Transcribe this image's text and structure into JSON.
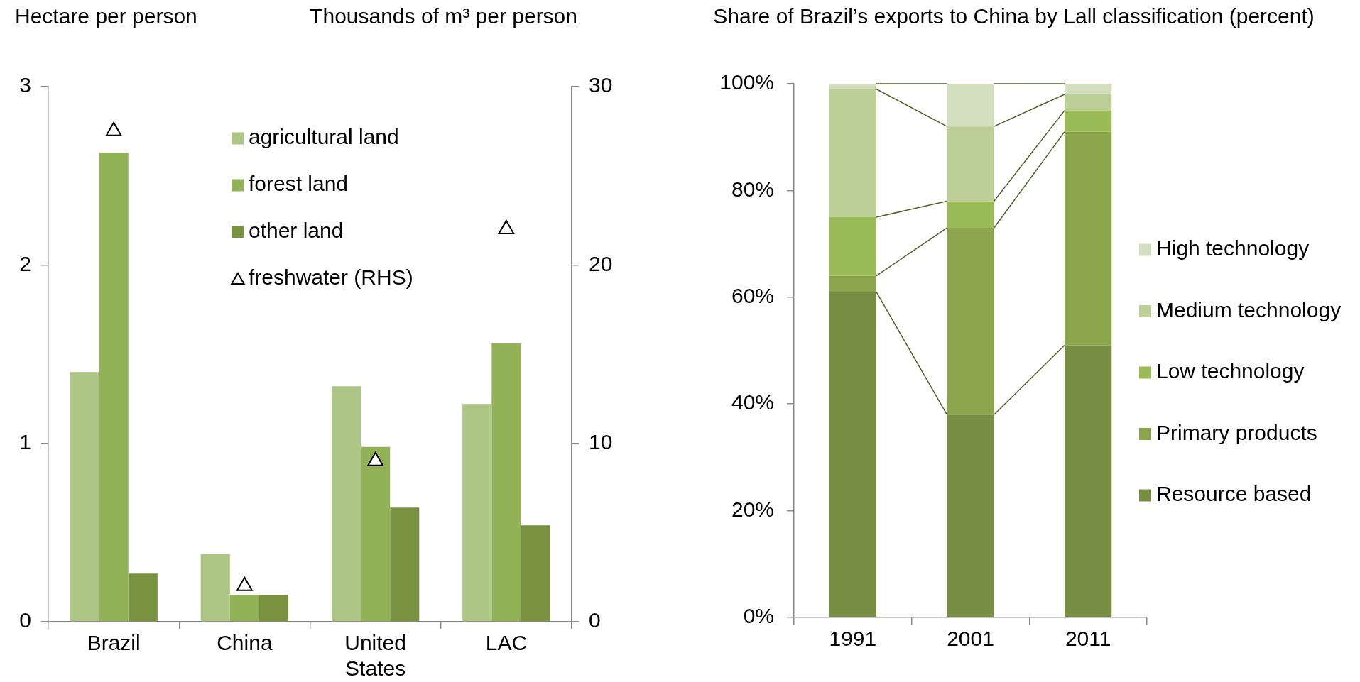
{
  "chart_data": [
    {
      "type": "bar",
      "ylabel": "Hectare per person",
      "y2label": "Thousands of m³ per person",
      "categories": [
        "Brazil",
        "China",
        "United States",
        "LAC"
      ],
      "series": [
        {
          "name": "agricultural land",
          "color": "#adc585",
          "values": [
            1.4,
            0.38,
            1.32,
            1.22
          ]
        },
        {
          "name": "forest land",
          "color": "#93b156",
          "values": [
            2.63,
            0.15,
            0.98,
            1.56
          ]
        },
        {
          "name": "other land",
          "color": "#789242",
          "values": [
            0.27,
            0.15,
            0.64,
            0.54
          ]
        },
        {
          "name": "freshwater (RHS)",
          "type": "scatter",
          "axis": "y2",
          "marker": "triangle",
          "color": "#000000",
          "x": [
            "Brazil",
            "China",
            "United States",
            "LAC"
          ],
          "values": [
            27.5,
            2.0,
            9.0,
            22.0
          ]
        }
      ],
      "ylim": [
        0,
        3
      ],
      "yticks": [
        0,
        1,
        2,
        3
      ],
      "y2lim": [
        0,
        30
      ],
      "y2ticks": [
        0,
        10,
        20,
        30
      ],
      "grid": false,
      "legend": "top"
    },
    {
      "type": "bar",
      "title": "Share of Brazil’s exports to China by Lall classification (percent)",
      "categories": [
        "1991",
        "2001",
        "2011"
      ],
      "stacked": true,
      "series": [
        {
          "name": "Resource based",
          "color": "#778e42",
          "values": [
            61,
            38,
            51
          ]
        },
        {
          "name": "Primary products",
          "color": "#8aa54c",
          "values": [
            3,
            35,
            40
          ]
        },
        {
          "name": "Low technology",
          "color": "#9bbb59",
          "values": [
            11,
            5,
            4
          ]
        },
        {
          "name": "Medium technology",
          "color": "#bccf97",
          "values": [
            24,
            14,
            3
          ]
        },
        {
          "name": "High technology",
          "color": "#d3dfbf",
          "values": [
            1,
            8,
            2
          ]
        }
      ],
      "ylim": [
        0,
        100
      ],
      "yticks": [
        {
          "value": 0,
          "label": "0%"
        },
        {
          "value": 20,
          "label": "20%"
        },
        {
          "value": 40,
          "label": "40%"
        },
        {
          "value": 60,
          "label": "60%"
        },
        {
          "value": 80,
          "label": "80%"
        },
        {
          "value": 100,
          "label": "100%"
        }
      ],
      "grid": false,
      "legend": "right"
    }
  ]
}
